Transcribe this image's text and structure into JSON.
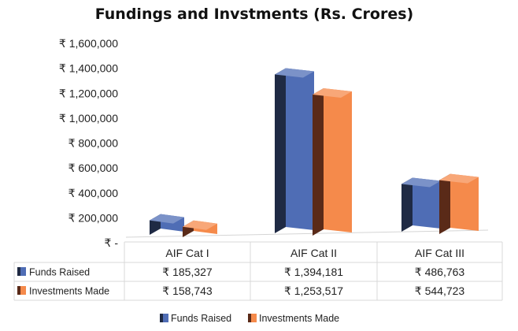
{
  "chart_data": {
    "type": "bar",
    "title": "Fundings and Invstments (Rs. Crores)",
    "currency_symbol": "₹",
    "categories": [
      "AIF Cat I",
      "AIF Cat II",
      "AIF Cat III"
    ],
    "series": [
      {
        "name": "Funds Raised",
        "values": [
          185327,
          1394181,
          486763
        ],
        "value_labels": [
          "₹ 185,327",
          "₹ 1,394,181",
          "₹ 486,763"
        ],
        "color": "#4F6DB5",
        "dark_color": "#1F2A44"
      },
      {
        "name": "Investments Made",
        "values": [
          158743,
          1253517,
          544723
        ],
        "value_labels": [
          "₹ 158,743",
          "₹ 1,253,517",
          "₹ 544,723"
        ],
        "color": "#F58A4B",
        "dark_color": "#5A2A18"
      }
    ],
    "y_ticks": [
      0,
      200000,
      400000,
      600000,
      800000,
      1000000,
      1200000,
      1400000,
      1600000
    ],
    "y_tick_labels": [
      "₹ -",
      "₹ 200,000",
      "₹ 400,000",
      "₹ 600,000",
      "₹ 800,000",
      "₹ 1,000,000",
      "₹ 1,200,000",
      "₹ 1,400,000",
      "₹ 1,600,000"
    ],
    "ylim": [
      0,
      1600000
    ],
    "grid": false,
    "legend_position": "bottom",
    "data_table": true
  }
}
